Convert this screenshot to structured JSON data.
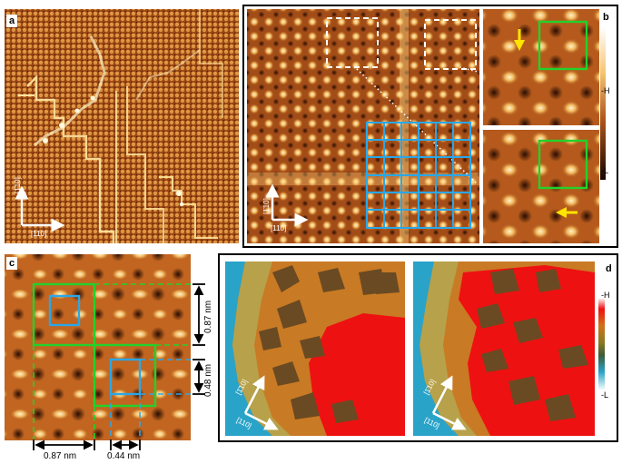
{
  "panels": {
    "a": {
      "label": "a",
      "axis_y": "[1̄10]",
      "axis_x": "[110]"
    },
    "b": {
      "label": "b",
      "axis_y": "[1̄10]",
      "axis_x": "[110]",
      "colorbar": {
        "high": "-H",
        "low": "-L"
      }
    },
    "c": {
      "label": "c",
      "scale_labels": {
        "vertical_large": "0.87 nm",
        "vertical_small": "0.48 nm",
        "horizontal_large": "0.87 nm",
        "horizontal_small": "0.44 nm"
      }
    },
    "d": {
      "label": "d",
      "axis_y": "[1̄10]",
      "axis_x": "[110]",
      "colorbar": {
        "high": "-H",
        "low": "-L"
      }
    }
  },
  "colors": {
    "stm_dark": "#3a1202",
    "stm_mid": "#b8571a",
    "stm_bright": "#ffe7a8",
    "grid_blue": "#2aa7e8",
    "box_green": "#22d22a",
    "arrow_yellow": "#ffe400",
    "d_red": "#ee1111",
    "d_orange": "#c97a24",
    "d_brown": "#6a4a22",
    "d_blue": "#3aa8d6"
  }
}
